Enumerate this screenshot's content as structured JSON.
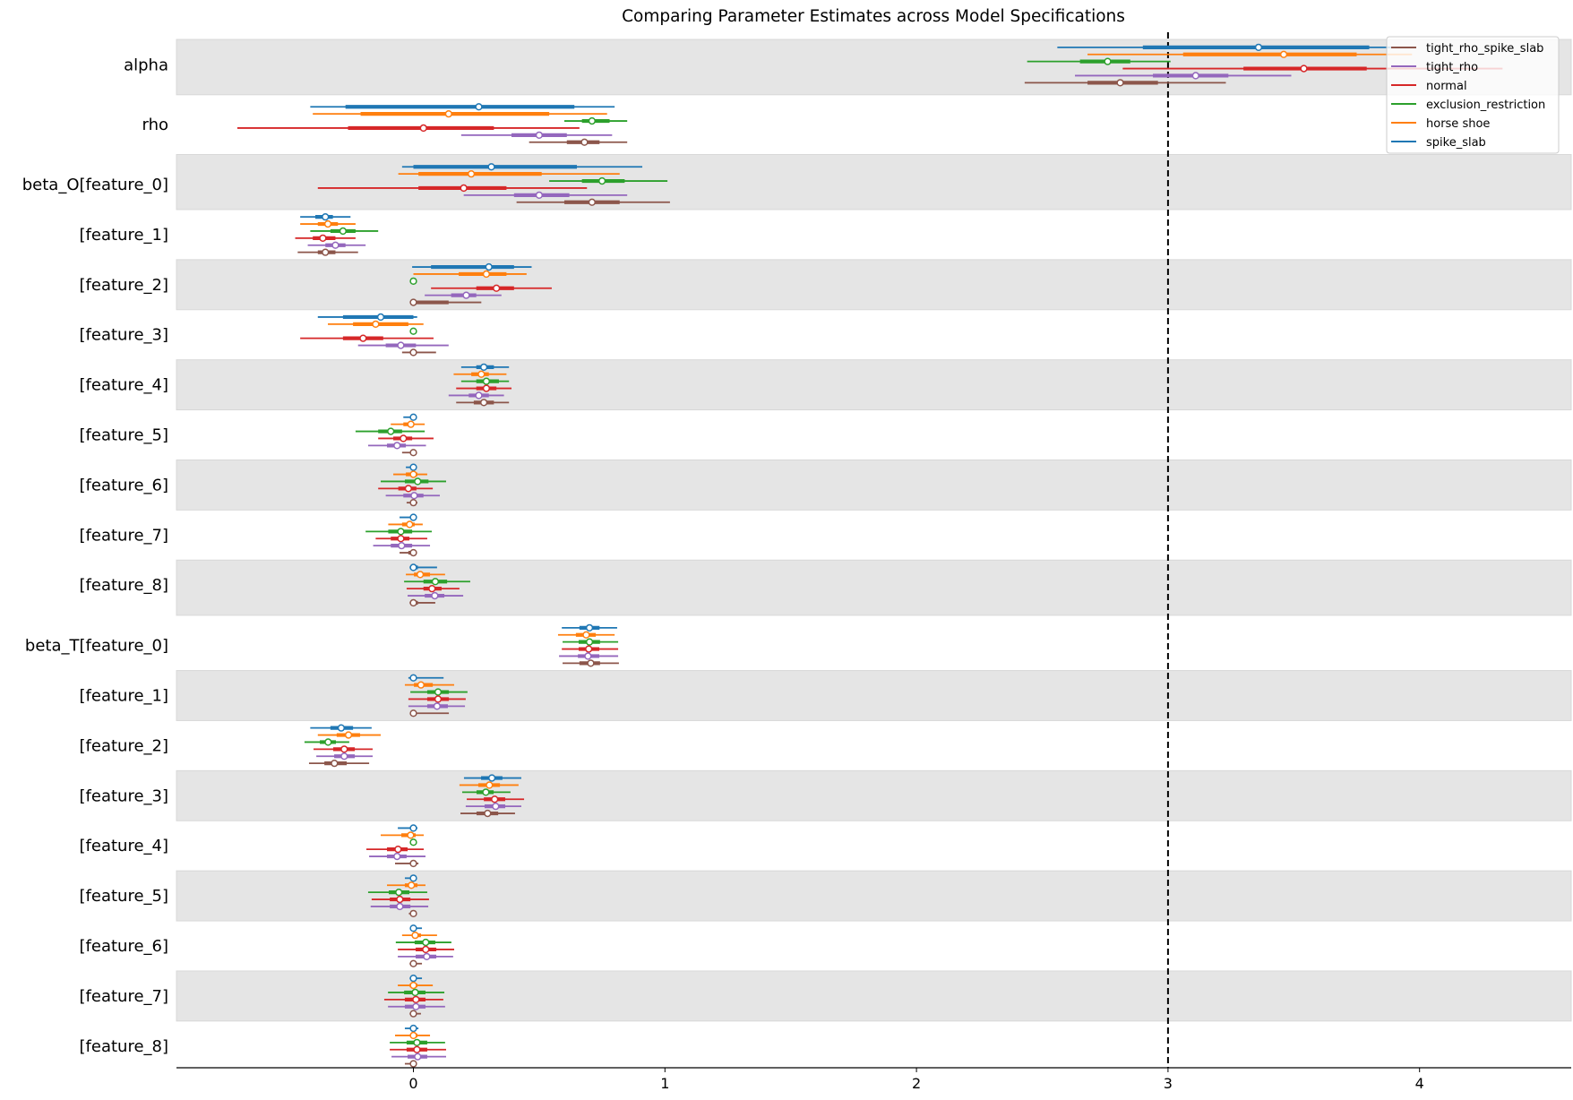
{
  "chart_data": {
    "type": "forest",
    "title": "Comparing Parameter Estimates across Model Specifications",
    "xlabel": "",
    "ylabel": "",
    "xlim": [
      -0.94,
      4.6
    ],
    "x_ticks": [
      0,
      1,
      2,
      3,
      4
    ],
    "x_tick_labels": [
      "0",
      "1",
      "2",
      "3",
      "4"
    ],
    "reference_line": {
      "x": 3,
      "style": "dashed",
      "color": "#000000"
    },
    "grid": false,
    "legend_position": "top-right",
    "legend": [
      "tight_rho_spike_slab",
      "tight_rho",
      "normal",
      "exclusion_restriction",
      "horse shoe",
      "spike_slab"
    ],
    "models": [
      {
        "name": "spike_slab",
        "color": "#1f77b4"
      },
      {
        "name": "horse shoe",
        "color": "#ff7f0e"
      },
      {
        "name": "exclusion_restriction",
        "color": "#2ca02c"
      },
      {
        "name": "normal",
        "color": "#d62728"
      },
      {
        "name": "tight_rho",
        "color": "#9467bd"
      },
      {
        "name": "tight_rho_spike_slab",
        "color": "#8c564b"
      }
    ],
    "interval_format": [
      "outer_low",
      "inner_low",
      "median",
      "inner_high",
      "outer_high"
    ],
    "band_color": "#e5e5e5",
    "rows": [
      {
        "label": "alpha",
        "estimates": [
          [
            2.56,
            2.9,
            3.36,
            3.8,
            3.93
          ],
          [
            2.68,
            3.06,
            3.46,
            3.75,
            3.97
          ],
          [
            2.44,
            2.65,
            2.76,
            2.85,
            3.01
          ],
          [
            2.82,
            3.3,
            3.54,
            3.79,
            4.33
          ],
          [
            2.63,
            2.94,
            3.11,
            3.24,
            3.49
          ],
          [
            2.43,
            2.68,
            2.81,
            2.96,
            3.23
          ]
        ]
      },
      {
        "label": "rho",
        "estimates": [
          [
            -0.41,
            -0.27,
            0.26,
            0.64,
            0.8
          ],
          [
            -0.4,
            -0.21,
            0.14,
            0.54,
            0.77
          ],
          [
            0.6,
            0.67,
            0.71,
            0.78,
            0.85
          ],
          [
            -0.7,
            -0.26,
            0.04,
            0.32,
            0.66
          ],
          [
            0.19,
            0.39,
            0.5,
            0.61,
            0.79
          ],
          [
            0.46,
            0.61,
            0.68,
            0.74,
            0.85
          ]
        ]
      },
      {
        "label": "beta_O[feature_0]",
        "estimates": [
          [
            -0.045,
            0.0,
            0.31,
            0.65,
            0.91
          ],
          [
            -0.06,
            0.02,
            0.23,
            0.51,
            0.82
          ],
          [
            0.54,
            0.67,
            0.75,
            0.84,
            1.01
          ],
          [
            -0.38,
            0.02,
            0.2,
            0.37,
            0.69
          ],
          [
            0.2,
            0.4,
            0.5,
            0.62,
            0.85
          ],
          [
            0.41,
            0.6,
            0.71,
            0.82,
            1.02
          ]
        ]
      },
      {
        "label": "[feature_1]",
        "estimates": [
          [
            -0.45,
            -0.39,
            -0.35,
            -0.32,
            -0.25
          ],
          [
            -0.45,
            -0.38,
            -0.34,
            -0.3,
            -0.23
          ],
          [
            -0.41,
            -0.33,
            -0.28,
            -0.23,
            -0.14
          ],
          [
            -0.47,
            -0.4,
            -0.36,
            -0.31,
            -0.23
          ],
          [
            -0.42,
            -0.35,
            -0.31,
            -0.27,
            -0.19
          ],
          [
            -0.46,
            -0.38,
            -0.35,
            -0.31,
            -0.22
          ]
        ]
      },
      {
        "label": "[feature_2]",
        "estimates": [
          [
            -0.005,
            0.07,
            0.3,
            0.4,
            0.47
          ],
          [
            0.0,
            0.18,
            0.29,
            0.37,
            0.45
          ],
          [
            0,
            0,
            0,
            0,
            0
          ],
          [
            0.07,
            0.25,
            0.33,
            0.4,
            0.55
          ],
          [
            0.045,
            0.15,
            0.21,
            0.25,
            0.35
          ],
          [
            0,
            0,
            0,
            0.14,
            0.27
          ]
        ]
      },
      {
        "label": "[feature_3]",
        "estimates": [
          [
            -0.38,
            -0.28,
            -0.13,
            0.0,
            0.015
          ],
          [
            -0.34,
            -0.24,
            -0.15,
            -0.02,
            0.04
          ],
          [
            0,
            0,
            0,
            0,
            0
          ],
          [
            -0.45,
            -0.28,
            -0.2,
            -0.12,
            0.08
          ],
          [
            -0.22,
            -0.11,
            -0.05,
            0.01,
            0.14
          ],
          [
            -0.045,
            0,
            0,
            0,
            0.09
          ]
        ]
      },
      {
        "label": "[feature_4]",
        "estimates": [
          [
            0.19,
            0.25,
            0.28,
            0.32,
            0.38
          ],
          [
            0.16,
            0.23,
            0.27,
            0.3,
            0.37
          ],
          [
            0.19,
            0.25,
            0.29,
            0.34,
            0.38
          ],
          [
            0.17,
            0.25,
            0.29,
            0.33,
            0.39
          ],
          [
            0.14,
            0.22,
            0.26,
            0.3,
            0.36
          ],
          [
            0.17,
            0.24,
            0.28,
            0.32,
            0.38
          ]
        ]
      },
      {
        "label": "[feature_5]",
        "estimates": [
          [
            -0.04,
            -0.01,
            0,
            0,
            0.005
          ],
          [
            -0.09,
            -0.04,
            -0.01,
            0,
            0.045
          ],
          [
            -0.23,
            -0.14,
            -0.09,
            -0.045,
            0.045
          ],
          [
            -0.14,
            -0.08,
            -0.04,
            -0.005,
            0.08
          ],
          [
            -0.18,
            -0.105,
            -0.065,
            -0.03,
            0.05
          ],
          [
            -0.045,
            0,
            0,
            0,
            0.005
          ]
        ]
      },
      {
        "label": "[feature_6]",
        "estimates": [
          [
            -0.03,
            0,
            0,
            0,
            0
          ],
          [
            -0.08,
            -0.03,
            0,
            0.016,
            0.055
          ],
          [
            -0.13,
            -0.034,
            0.017,
            0.06,
            0.13
          ],
          [
            -0.14,
            -0.06,
            -0.02,
            0.012,
            0.077
          ],
          [
            -0.11,
            -0.04,
            0.003,
            0.04,
            0.105
          ],
          [
            -0.027,
            -0.01,
            0,
            0.01,
            0.016
          ]
        ]
      },
      {
        "label": "[feature_7]",
        "estimates": [
          [
            -0.055,
            0,
            0,
            0,
            0.014
          ],
          [
            -0.1,
            -0.045,
            -0.015,
            0.005,
            0.037
          ],
          [
            -0.19,
            -0.1,
            -0.05,
            -0.005,
            0.073
          ],
          [
            -0.15,
            -0.09,
            -0.05,
            -0.016,
            0.055
          ],
          [
            -0.16,
            -0.09,
            -0.047,
            -0.005,
            0.066
          ],
          [
            -0.055,
            -0.02,
            0,
            0,
            0.014
          ]
        ]
      },
      {
        "label": "[feature_8]",
        "estimates": [
          [
            -0.015,
            0,
            0,
            0.018,
            0.094
          ],
          [
            -0.03,
            0.002,
            0.027,
            0.066,
            0.126
          ],
          [
            -0.037,
            0.04,
            0.087,
            0.134,
            0.226
          ],
          [
            -0.027,
            0.04,
            0.074,
            0.112,
            0.183
          ],
          [
            -0.023,
            0.045,
            0.085,
            0.123,
            0.198
          ],
          [
            -0.015,
            0,
            0,
            0.018,
            0.087
          ]
        ]
      },
      {
        "label": "beta_T[feature_0]",
        "estimates": [
          [
            0.59,
            0.66,
            0.7,
            0.74,
            0.81
          ],
          [
            0.575,
            0.646,
            0.687,
            0.725,
            0.8
          ],
          [
            0.593,
            0.657,
            0.7,
            0.742,
            0.814
          ],
          [
            0.59,
            0.657,
            0.697,
            0.739,
            0.814
          ],
          [
            0.579,
            0.654,
            0.694,
            0.739,
            0.814
          ],
          [
            0.593,
            0.66,
            0.705,
            0.742,
            0.817
          ]
        ]
      },
      {
        "label": "[feature_1]",
        "estimates": [
          [
            -0.02,
            -0.005,
            0,
            0.012,
            0.12
          ],
          [
            -0.034,
            0.002,
            0.03,
            0.077,
            0.162
          ],
          [
            -0.012,
            0.055,
            0.098,
            0.141,
            0.215
          ],
          [
            -0.02,
            0.055,
            0.098,
            0.141,
            0.208
          ],
          [
            -0.02,
            0.055,
            0.094,
            0.137,
            0.205
          ],
          [
            0,
            0,
            0,
            0.012,
            0.141
          ]
        ]
      },
      {
        "label": "[feature_2]",
        "estimates": [
          [
            -0.41,
            -0.33,
            -0.287,
            -0.24,
            -0.166
          ],
          [
            -0.38,
            -0.305,
            -0.258,
            -0.212,
            -0.13
          ],
          [
            -0.433,
            -0.372,
            -0.339,
            -0.308,
            -0.255
          ],
          [
            -0.397,
            -0.319,
            -0.275,
            -0.233,
            -0.162
          ],
          [
            -0.386,
            -0.315,
            -0.275,
            -0.233,
            -0.162
          ],
          [
            -0.415,
            -0.354,
            -0.314,
            -0.265,
            -0.176
          ]
        ]
      },
      {
        "label": "[feature_3]",
        "estimates": [
          [
            0.201,
            0.269,
            0.312,
            0.354,
            0.429
          ],
          [
            0.183,
            0.258,
            0.302,
            0.344,
            0.418
          ],
          [
            0.194,
            0.251,
            0.288,
            0.319,
            0.386
          ],
          [
            0.212,
            0.28,
            0.323,
            0.365,
            0.44
          ],
          [
            0.208,
            0.283,
            0.327,
            0.365,
            0.429
          ],
          [
            0.187,
            0.251,
            0.295,
            0.337,
            0.404
          ]
        ]
      },
      {
        "label": "[feature_4]",
        "estimates": [
          [
            -0.062,
            -0.005,
            0,
            0,
            0.016
          ],
          [
            -0.13,
            -0.048,
            -0.011,
            0.009,
            0.041
          ],
          [
            0,
            0,
            0,
            0,
            0
          ],
          [
            -0.187,
            -0.105,
            -0.061,
            -0.023,
            0.041
          ],
          [
            -0.176,
            -0.105,
            -0.065,
            -0.027,
            0.048
          ],
          [
            -0.073,
            -0.005,
            0,
            0,
            0.02
          ]
        ]
      },
      {
        "label": "[feature_5]",
        "estimates": [
          [
            -0.034,
            -0.005,
            0,
            0,
            0.012
          ],
          [
            -0.105,
            -0.034,
            -0.008,
            0.016,
            0.048
          ],
          [
            -0.18,
            -0.098,
            -0.058,
            -0.016,
            0.055
          ],
          [
            -0.166,
            -0.094,
            -0.054,
            -0.012,
            0.062
          ],
          [
            -0.17,
            -0.094,
            -0.054,
            -0.012,
            0.059
          ],
          [
            -0.018,
            -0.005,
            0,
            0,
            0.007
          ]
        ]
      },
      {
        "label": "[feature_6]",
        "estimates": [
          [
            0,
            0,
            0,
            0.008,
            0.034
          ],
          [
            -0.045,
            -0.005,
            0.007,
            0.03,
            0.094
          ],
          [
            -0.07,
            0.005,
            0.049,
            0.087,
            0.151
          ],
          [
            -0.062,
            0.009,
            0.049,
            0.091,
            0.162
          ],
          [
            -0.062,
            0.009,
            0.053,
            0.091,
            0.158
          ],
          [
            -0.015,
            0,
            0,
            0.007,
            0.034
          ]
        ]
      },
      {
        "label": "[feature_7]",
        "estimates": [
          [
            -0.015,
            0,
            0,
            0.008,
            0.034
          ],
          [
            -0.062,
            -0.015,
            0,
            0.016,
            0.077
          ],
          [
            -0.101,
            -0.037,
            0.007,
            0.048,
            0.123
          ],
          [
            -0.116,
            -0.034,
            0.01,
            0.048,
            0.119
          ],
          [
            -0.101,
            -0.034,
            0.01,
            0.048,
            0.126
          ],
          [
            -0.015,
            0,
            0,
            0.008,
            0.03
          ]
        ]
      },
      {
        "label": "[feature_8]",
        "estimates": [
          [
            -0.034,
            -0.005,
            0,
            0.008,
            0.02
          ],
          [
            -0.073,
            -0.01,
            0,
            0.016,
            0.066
          ],
          [
            -0.094,
            -0.027,
            0.014,
            0.055,
            0.126
          ],
          [
            -0.094,
            -0.027,
            0.014,
            0.055,
            0.13
          ],
          [
            -0.087,
            -0.023,
            0.017,
            0.055,
            0.13
          ],
          [
            -0.034,
            -0.005,
            0,
            0,
            0.007
          ]
        ]
      }
    ]
  }
}
